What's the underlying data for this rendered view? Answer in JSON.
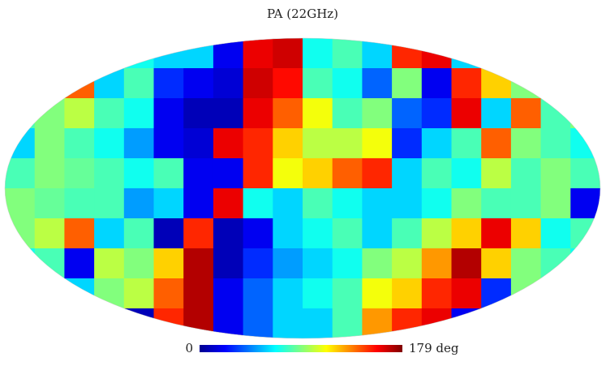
{
  "chart_data": {
    "type": "heatmap",
    "projection": "mollweide",
    "title": "PA (22GHz)",
    "colormap": "jet",
    "clim": [
      0,
      179
    ],
    "colorbar_ticks": [
      0,
      {
        "value": 179,
        "label": "179 deg"
      }
    ],
    "values": [
      [
        90,
        90,
        90,
        90,
        70,
        60,
        60,
        20,
        160,
        165,
        70,
        80,
        60,
        150,
        160,
        60,
        90,
        90,
        90,
        90
      ],
      [
        90,
        80,
        140,
        60,
        80,
        30,
        20,
        15,
        165,
        155,
        80,
        70,
        40,
        90,
        20,
        150,
        120,
        90,
        90,
        90
      ],
      [
        80,
        90,
        100,
        80,
        70,
        20,
        10,
        10,
        160,
        140,
        110,
        80,
        90,
        40,
        30,
        160,
        60,
        140,
        80,
        90
      ],
      [
        60,
        90,
        80,
        70,
        50,
        20,
        15,
        160,
        150,
        120,
        100,
        100,
        110,
        30,
        60,
        80,
        140,
        90,
        80,
        70
      ],
      [
        80,
        90,
        85,
        80,
        70,
        80,
        20,
        20,
        150,
        110,
        120,
        140,
        150,
        60,
        80,
        70,
        100,
        80,
        90,
        80
      ],
      [
        90,
        85,
        80,
        80,
        50,
        60,
        20,
        160,
        70,
        60,
        80,
        70,
        60,
        60,
        70,
        90,
        80,
        80,
        90,
        20
      ],
      [
        90,
        100,
        140,
        60,
        80,
        10,
        150,
        10,
        20,
        60,
        70,
        80,
        60,
        80,
        100,
        120,
        160,
        120,
        70,
        80
      ],
      [
        70,
        80,
        20,
        100,
        90,
        120,
        170,
        10,
        30,
        50,
        60,
        70,
        90,
        100,
        130,
        170,
        120,
        90,
        80,
        70
      ],
      [
        80,
        70,
        60,
        90,
        100,
        140,
        170,
        20,
        40,
        60,
        70,
        80,
        110,
        120,
        150,
        160,
        30,
        90,
        80,
        80
      ],
      [
        90,
        90,
        70,
        30,
        10,
        150,
        170,
        20,
        40,
        60,
        60,
        80,
        130,
        150,
        160,
        20,
        60,
        80,
        90,
        90
      ]
    ]
  }
}
